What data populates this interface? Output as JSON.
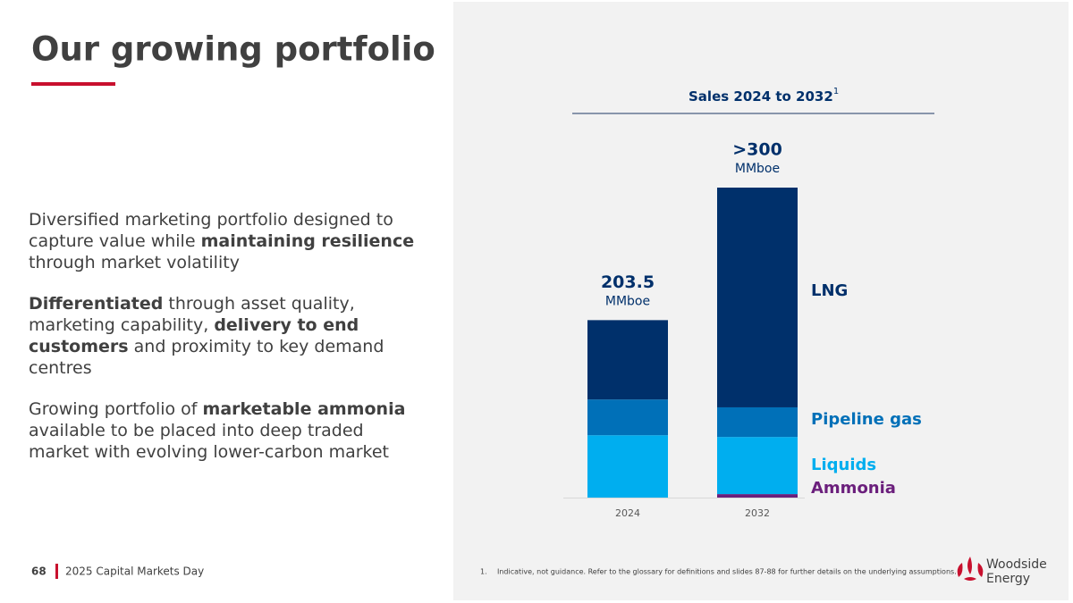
{
  "slide": {
    "title": "Our growing portfolio",
    "paragraphs": [
      [
        {
          "text": "Diversified marketing portfolio designed to capture value while ",
          "bold": false
        },
        {
          "text": "maintaining resilience",
          "bold": true
        },
        {
          "text": " through market volatility",
          "bold": false
        }
      ],
      [
        {
          "text": "Differentiated",
          "bold": true
        },
        {
          "text": " through asset quality, marketing capability, ",
          "bold": false
        },
        {
          "text": "delivery to end customers",
          "bold": true
        },
        {
          "text": " and proximity to key demand centres",
          "bold": false
        }
      ],
      [
        {
          "text": "Growing portfolio of ",
          "bold": false
        },
        {
          "text": "marketable ammonia",
          "bold": true
        },
        {
          "text": " available to be placed into deep traded market with evolving lower-carbon market",
          "bold": false
        }
      ]
    ],
    "page_number": "68",
    "footer": "2025 Capital Markets Day",
    "footnote_marker": "1.",
    "footnote": "Indicative, not guidance. Refer to the glossary for definitions and slides 87-88 for further details on the underlying assumptions.",
    "logo": [
      "Woodside",
      "Energy"
    ]
  },
  "chart_data": {
    "type": "stacked-bar",
    "title": "Sales 2024 to 2032",
    "title_footnote": "1",
    "categories": [
      "2024",
      "2032"
    ],
    "total_labels": [
      "203.5",
      ">300"
    ],
    "total_units": [
      "MMboe",
      "MMboe"
    ],
    "series": [
      {
        "name": "Ammonia",
        "color": "#6b1f7c",
        "values": [
          0,
          4
        ]
      },
      {
        "name": "Liquids",
        "color": "#00aeef",
        "values": [
          71.5,
          65.5
        ]
      },
      {
        "name": "Pipeline gas",
        "color": "#0070b8",
        "values": [
          41,
          34
        ]
      },
      {
        "name": "LNG",
        "color": "#00306b",
        "values": [
          91,
          252
        ]
      }
    ]
  }
}
